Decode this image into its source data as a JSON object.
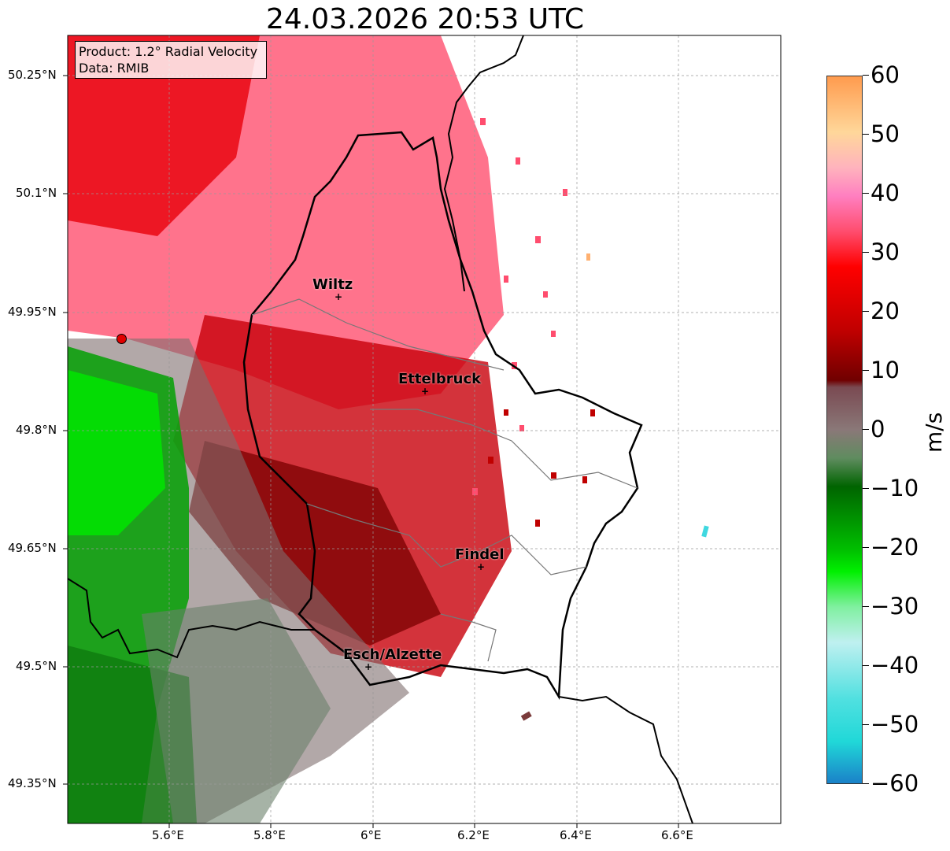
{
  "title": "24.03.2026 20:53 UTC",
  "info": {
    "product": "Product: 1.2° Radial Velocity",
    "data_source": "Data: RMIB"
  },
  "lat_ticks": [
    "50.25°N",
    "50.1°N",
    "49.95°N",
    "49.8°N",
    "49.65°N",
    "49.5°N",
    "49.35°N"
  ],
  "lon_ticks": [
    "5.6°E",
    "5.8°E",
    "6°E",
    "6.2°E",
    "6.4°E",
    "6.6°E"
  ],
  "cities": [
    {
      "name": "Wiltz"
    },
    {
      "name": "Ettelbruck"
    },
    {
      "name": "Findel"
    },
    {
      "name": "Esch/Alzette"
    }
  ],
  "colorbar": {
    "label": "m/s",
    "ticks": [
      "60",
      "50",
      "40",
      "30",
      "20",
      "10",
      "0",
      "−10",
      "−20",
      "−30",
      "−40",
      "−50",
      "−60"
    ],
    "range": [
      -60,
      60
    ]
  },
  "colors": {
    "strong_receding": "#e8000a",
    "receding_pink": "#ff5a78",
    "dark_red": "#7a0000",
    "near_zero": "#7f6e6e",
    "green_approach": "#0ca00c",
    "bright_green": "#00e600",
    "cyan": "#40d8e0",
    "orange_max": "#ff9a40"
  }
}
